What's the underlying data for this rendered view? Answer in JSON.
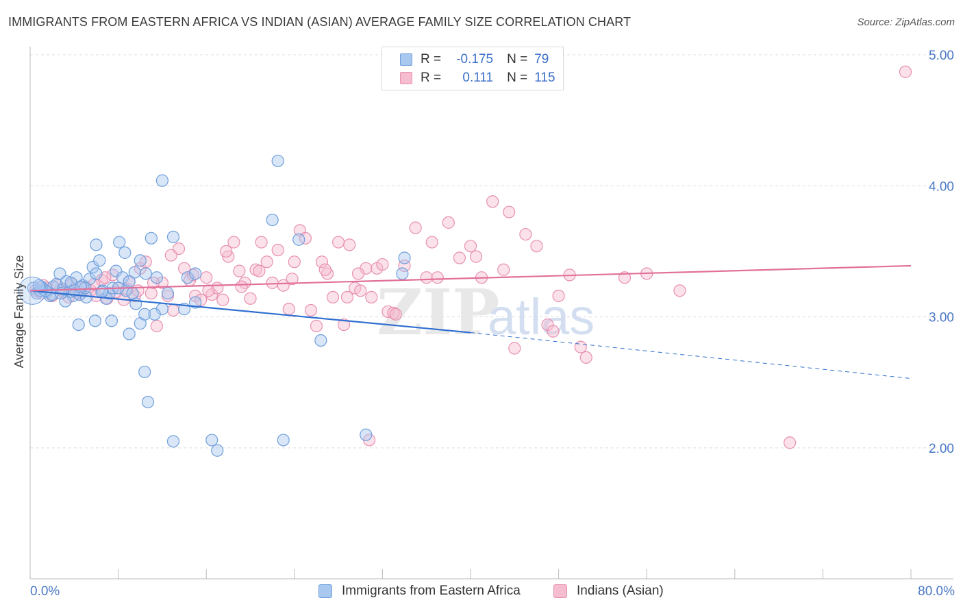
{
  "header": {
    "title": "IMMIGRANTS FROM EASTERN AFRICA VS INDIAN (ASIAN) AVERAGE FAMILY SIZE CORRELATION CHART",
    "source": "Source: ZipAtlas.com"
  },
  "legend_top": {
    "rows": [
      {
        "r_label": "R =",
        "r_value": "-0.175",
        "n_label": "N =",
        "n_value": "79"
      },
      {
        "r_label": "R =",
        "r_value": "0.111",
        "n_label": "N =",
        "n_value": "115"
      }
    ]
  },
  "legend_bottom": {
    "series_a": "Immigrants from Eastern Africa",
    "series_b": "Indians (Asian)"
  },
  "watermark": {
    "zip": "ZIP",
    "atlas": "atlas"
  },
  "colors": {
    "blue_fill": "#a9c8f0",
    "blue_stroke": "#6f9fdc",
    "blue_line": "#2f6fd0",
    "pink_fill": "#f6bcd0",
    "pink_stroke": "#e890b0",
    "pink_line": "#e2709a",
    "axis_label": "#4a78c4"
  },
  "chart_data": {
    "type": "scatter",
    "title": "IMMIGRANTS FROM EASTERN AFRICA VS INDIAN (ASIAN) AVERAGE FAMILY SIZE CORRELATION CHART",
    "xlabel": "",
    "ylabel": "Average Family Size",
    "xlim": [
      0,
      80
    ],
    "ylim": [
      1.0,
      5.2
    ],
    "x_tick_labels": [
      "0.0%",
      "80.0%"
    ],
    "y_ticks": [
      2.0,
      3.0,
      4.0,
      5.0
    ],
    "y_tick_labels": [
      "2.00",
      "3.00",
      "4.00",
      "5.00"
    ],
    "grid": "horizontal dashed",
    "legend": "top-center and bottom",
    "series": [
      {
        "name": "Immigrants from Eastern Africa",
        "r": -0.175,
        "n": 79,
        "trend": {
          "x0": 0,
          "y0": 3.2,
          "x1": 40,
          "y1": 2.88,
          "dashed_to_x": 80,
          "dashed_to_y": 2.53
        },
        "points": [
          [
            0.3,
            3.22
          ],
          [
            0.6,
            3.18
          ],
          [
            0.9,
            3.2
          ],
          [
            1.2,
            3.21
          ],
          [
            1.5,
            3.19
          ],
          [
            1.8,
            3.16
          ],
          [
            2.1,
            3.23
          ],
          [
            2.4,
            3.25
          ],
          [
            2.7,
            3.33
          ],
          [
            3.0,
            3.21
          ],
          [
            3.3,
            3.27
          ],
          [
            3.6,
            3.19
          ],
          [
            3.9,
            3.16
          ],
          [
            4.2,
            3.3
          ],
          [
            4.5,
            3.17
          ],
          [
            4.8,
            3.24
          ],
          [
            5.1,
            3.15
          ],
          [
            5.4,
            3.29
          ],
          [
            5.7,
            3.38
          ],
          [
            6.0,
            3.33
          ],
          [
            6.3,
            3.43
          ],
          [
            6.6,
            3.2
          ],
          [
            6.9,
            3.14
          ],
          [
            7.2,
            3.18
          ],
          [
            7.5,
            3.22
          ],
          [
            7.8,
            3.35
          ],
          [
            8.1,
            3.57
          ],
          [
            8.4,
            3.3
          ],
          [
            8.7,
            3.2
          ],
          [
            9.0,
            3.27
          ],
          [
            9.3,
            3.18
          ],
          [
            9.6,
            3.1
          ],
          [
            10.0,
            3.43
          ],
          [
            10.5,
            3.33
          ],
          [
            11.0,
            3.6
          ],
          [
            11.5,
            3.3
          ],
          [
            12.0,
            3.06
          ],
          [
            13.0,
            3.61
          ],
          [
            14.0,
            3.06
          ],
          [
            15.0,
            3.11
          ],
          [
            3.2,
            3.12
          ],
          [
            4.4,
            2.94
          ],
          [
            6.0,
            3.55
          ],
          [
            5.9,
            2.97
          ],
          [
            7.4,
            2.97
          ],
          [
            8.6,
            3.49
          ],
          [
            9.0,
            2.87
          ],
          [
            10.0,
            2.95
          ],
          [
            10.4,
            3.02
          ],
          [
            11.3,
            3.02
          ],
          [
            12.0,
            4.04
          ],
          [
            10.4,
            2.58
          ],
          [
            10.7,
            2.35
          ],
          [
            13.0,
            2.05
          ],
          [
            16.5,
            2.06
          ],
          [
            17.0,
            1.98
          ],
          [
            23.0,
            2.06
          ],
          [
            30.5,
            2.1
          ],
          [
            22.0,
            3.74
          ],
          [
            22.5,
            4.19
          ],
          [
            24.4,
            3.59
          ],
          [
            26.4,
            2.82
          ],
          [
            33.8,
            3.33
          ],
          [
            34.0,
            3.45
          ],
          [
            14.3,
            3.3
          ],
          [
            15.0,
            3.33
          ],
          [
            2.0,
            3.17
          ],
          [
            1.0,
            3.23
          ],
          [
            1.4,
            3.2
          ],
          [
            2.8,
            3.18
          ],
          [
            3.7,
            3.26
          ],
          [
            4.0,
            3.2
          ],
          [
            0.8,
            3.24
          ],
          [
            5.0,
            3.22
          ],
          [
            6.5,
            3.19
          ],
          [
            9.5,
            3.34
          ],
          [
            12.5,
            3.18
          ],
          [
            8.0,
            3.22
          ],
          [
            4.6,
            3.23
          ]
        ]
      },
      {
        "name": "Indians (Asian)",
        "r": 0.111,
        "n": 115,
        "trend": {
          "x0": 0,
          "y0": 3.2,
          "x1": 80,
          "y1": 3.39
        },
        "points": [
          [
            0.5,
            3.2
          ],
          [
            1.0,
            3.18
          ],
          [
            1.5,
            3.22
          ],
          [
            2.0,
            3.16
          ],
          [
            2.5,
            3.24
          ],
          [
            3.0,
            3.19
          ],
          [
            3.5,
            3.15
          ],
          [
            4.0,
            3.21
          ],
          [
            4.5,
            3.17
          ],
          [
            5.0,
            3.23
          ],
          [
            5.5,
            3.2
          ],
          [
            6.0,
            3.16
          ],
          [
            6.5,
            3.28
          ],
          [
            7.0,
            3.14
          ],
          [
            7.5,
            3.32
          ],
          [
            8.0,
            3.22
          ],
          [
            8.5,
            3.13
          ],
          [
            9.0,
            3.27
          ],
          [
            9.5,
            3.16
          ],
          [
            10.0,
            3.37
          ],
          [
            10.5,
            3.42
          ],
          [
            11.0,
            3.18
          ],
          [
            11.5,
            2.93
          ],
          [
            12.0,
            3.26
          ],
          [
            12.5,
            3.16
          ],
          [
            13.0,
            3.05
          ],
          [
            13.5,
            3.52
          ],
          [
            14.0,
            3.37
          ],
          [
            14.5,
            3.28
          ],
          [
            15.0,
            3.16
          ],
          [
            15.5,
            3.13
          ],
          [
            16.0,
            3.3
          ],
          [
            16.5,
            3.17
          ],
          [
            17.0,
            3.22
          ],
          [
            17.5,
            3.13
          ],
          [
            18.0,
            3.46
          ],
          [
            18.5,
            3.57
          ],
          [
            19.0,
            3.35
          ],
          [
            19.5,
            3.26
          ],
          [
            20.0,
            3.14
          ],
          [
            20.5,
            3.36
          ],
          [
            21.0,
            3.57
          ],
          [
            21.5,
            3.42
          ],
          [
            22.0,
            3.26
          ],
          [
            22.5,
            3.51
          ],
          [
            23.0,
            3.24
          ],
          [
            23.5,
            3.06
          ],
          [
            24.0,
            3.42
          ],
          [
            24.5,
            3.66
          ],
          [
            25.0,
            3.6
          ],
          [
            25.5,
            3.05
          ],
          [
            26.0,
            2.93
          ],
          [
            26.5,
            3.42
          ],
          [
            27.0,
            3.33
          ],
          [
            27.5,
            3.15
          ],
          [
            28.0,
            3.57
          ],
          [
            28.5,
            2.94
          ],
          [
            29.0,
            3.55
          ],
          [
            29.5,
            3.22
          ],
          [
            30.0,
            3.2
          ],
          [
            30.5,
            3.37
          ],
          [
            31.0,
            3.15
          ],
          [
            31.5,
            3.37
          ],
          [
            32.0,
            3.4
          ],
          [
            32.5,
            3.04
          ],
          [
            33.0,
            3.03
          ],
          [
            34.0,
            3.39
          ],
          [
            35.0,
            3.68
          ],
          [
            36.0,
            3.3
          ],
          [
            36.5,
            3.57
          ],
          [
            37.0,
            3.3
          ],
          [
            38.0,
            3.72
          ],
          [
            39.0,
            3.45
          ],
          [
            40.0,
            3.54
          ],
          [
            40.5,
            3.46
          ],
          [
            41.0,
            3.3
          ],
          [
            42.0,
            3.88
          ],
          [
            43.0,
            3.36
          ],
          [
            43.5,
            3.8
          ],
          [
            44.0,
            2.76
          ],
          [
            45.0,
            3.63
          ],
          [
            46.0,
            3.54
          ],
          [
            47.0,
            2.94
          ],
          [
            47.5,
            2.89
          ],
          [
            48.0,
            3.16
          ],
          [
            49.0,
            3.32
          ],
          [
            50.0,
            2.77
          ],
          [
            50.5,
            2.69
          ],
          [
            54.0,
            3.3
          ],
          [
            56.0,
            3.33
          ],
          [
            59.0,
            3.2
          ],
          [
            69.0,
            2.04
          ],
          [
            79.5,
            4.87
          ],
          [
            30.8,
            2.06
          ],
          [
            28.8,
            3.15
          ],
          [
            33.2,
            3.02
          ],
          [
            2.8,
            3.21
          ],
          [
            3.8,
            3.25
          ],
          [
            6.8,
            3.3
          ],
          [
            8.8,
            3.21
          ],
          [
            9.8,
            3.2
          ],
          [
            11.2,
            3.26
          ],
          [
            14.8,
            3.32
          ],
          [
            17.8,
            3.5
          ],
          [
            20.8,
            3.35
          ],
          [
            23.8,
            3.29
          ],
          [
            26.8,
            3.36
          ],
          [
            29.8,
            3.33
          ],
          [
            1.2,
            3.24
          ],
          [
            4.3,
            3.18
          ],
          [
            5.8,
            3.25
          ],
          [
            7.8,
            3.19
          ],
          [
            12.8,
            3.47
          ],
          [
            16.2,
            3.2
          ],
          [
            19.2,
            3.23
          ]
        ]
      }
    ]
  }
}
